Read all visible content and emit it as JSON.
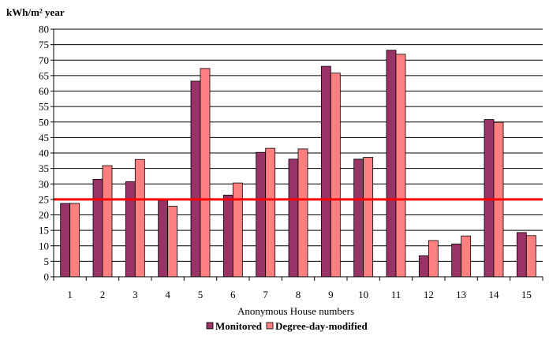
{
  "chart_data": {
    "type": "bar",
    "ylabel": "kWh/m² year",
    "xlabel": "Anonymous House numbers",
    "ylim": [
      0,
      80
    ],
    "ytick_step": 5,
    "grid": true,
    "legend_position": "bottom-center",
    "categories": [
      "1",
      "2",
      "3",
      "4",
      "5",
      "6",
      "7",
      "8",
      "9",
      "10",
      "11",
      "12",
      "13",
      "14",
      "15"
    ],
    "series": [
      {
        "name": "Monitored",
        "color": "#993366",
        "values": [
          23.7,
          31.5,
          30.7,
          24.7,
          63.2,
          26.4,
          40.2,
          38.0,
          68.0,
          38.0,
          73.2,
          6.8,
          10.6,
          50.8,
          14.3
        ]
      },
      {
        "name": "Degree-day-modified",
        "color": "#FF8080",
        "values": [
          23.7,
          35.9,
          37.9,
          22.8,
          67.3,
          30.3,
          41.5,
          41.3,
          65.8,
          38.6,
          71.9,
          11.7,
          13.2,
          49.9,
          13.3
        ]
      }
    ],
    "reference_line": {
      "value": 25,
      "color": "#FF0000"
    }
  }
}
